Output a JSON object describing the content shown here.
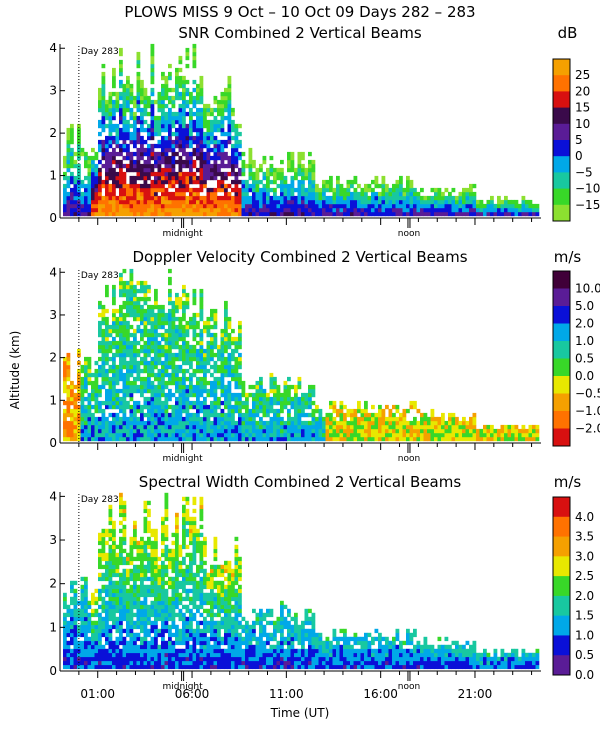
{
  "figure": {
    "title": "PLOWS MISS   9 Oct – 10 Oct 09 Days 282 – 283",
    "xlabel": "Time (UT)",
    "ylabel": "Altitude (km)",
    "x_ticks": [
      "01:00",
      "06:00",
      "11:00",
      "16:00",
      "21:00"
    ],
    "day_marker": "Day 283",
    "midnight_label": "midnight",
    "noon_label": "noon"
  },
  "chart_data": [
    {
      "type": "heatmap",
      "title": "SNR Combined 2 Vertical Beams",
      "colorbar_label": "dB",
      "colorbar_ticks": [
        "25",
        "20",
        "15",
        "10",
        "5",
        "0",
        "−5",
        "−10",
        "−15"
      ],
      "colorbar_colors": [
        "#f5a000",
        "#ff7200",
        "#d81010",
        "#3a0a4a",
        "#5a1c96",
        "#0a10d8",
        "#00a8e8",
        "#18c8a0",
        "#38d828",
        "#8ce030"
      ],
      "ylim": [
        0,
        4.1
      ],
      "y_ticks": [
        "0",
        "1",
        "2",
        "3",
        "4"
      ],
      "xlim_hours": [
        -1,
        24.5
      ]
    },
    {
      "type": "heatmap",
      "title": "Doppler Velocity Combined 2 Vertical Beams",
      "colorbar_label": "m/s",
      "colorbar_ticks": [
        "10.0",
        "5.0",
        "2.0",
        "1.0",
        "0.5",
        "0.0",
        "−0.5",
        "−1.0",
        "−2.0"
      ],
      "colorbar_colors": [
        "#400038",
        "#5a1c96",
        "#0a10d8",
        "#00a8e8",
        "#18c8a0",
        "#38d828",
        "#e8e800",
        "#f5a000",
        "#ff7200",
        "#d81010"
      ],
      "ylim": [
        0,
        4.1
      ],
      "y_ticks": [
        "0",
        "1",
        "2",
        "3",
        "4"
      ],
      "xlim_hours": [
        -1,
        24.5
      ]
    },
    {
      "type": "heatmap",
      "title": "Spectral Width Combined 2 Vertical Beams",
      "colorbar_label": "m/s",
      "colorbar_ticks": [
        "4.0",
        "3.5",
        "3.0",
        "2.5",
        "2.0",
        "1.5",
        "1.0",
        "0.5",
        "0.0"
      ],
      "colorbar_colors": [
        "#d81010",
        "#ff7200",
        "#f5a000",
        "#e8e800",
        "#38d828",
        "#18c8a0",
        "#00a8e8",
        "#0a10d8",
        "#5a1c96"
      ],
      "ylim": [
        0,
        4.1
      ],
      "y_ticks": [
        "0",
        "1",
        "2",
        "3",
        "4"
      ],
      "xlim_hours": [
        -1,
        24.5
      ]
    }
  ]
}
